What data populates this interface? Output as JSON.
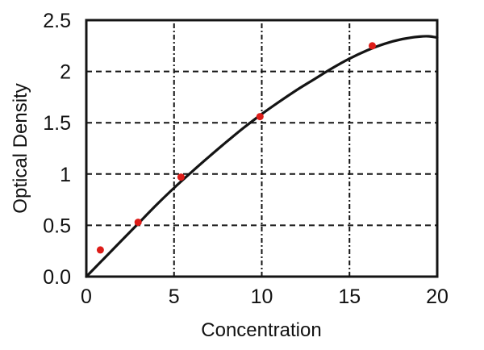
{
  "chart_data": {
    "type": "line",
    "subtype": "standard-curve with scatter points",
    "title": "",
    "xlabel": "Concentration",
    "ylabel": "Optical Density",
    "xlim": [
      0,
      20
    ],
    "ylim": [
      0,
      2.5
    ],
    "x_ticks": {
      "values": [
        0,
        5,
        10,
        15,
        20
      ],
      "labels": [
        "0",
        "5",
        "10",
        "15",
        "20"
      ]
    },
    "y_ticks": {
      "values": [
        0,
        0.5,
        1,
        1.5,
        2,
        2.5
      ],
      "labels": [
        "0.0",
        "0.5",
        "1",
        "1.5",
        "2",
        "2.5"
      ]
    },
    "grid": {
      "show": true,
      "style": "dashed",
      "interior_only": true
    },
    "legend": {
      "show": false
    },
    "series": [
      {
        "name": "fitted-curve",
        "type": "line",
        "color": "#141414",
        "points": [
          [
            0,
            0
          ],
          [
            1,
            0.175
          ],
          [
            2,
            0.35
          ],
          [
            3,
            0.525
          ],
          [
            4,
            0.7
          ],
          [
            5,
            0.865
          ],
          [
            6,
            1.02
          ],
          [
            7,
            1.17
          ],
          [
            8,
            1.315
          ],
          [
            9,
            1.455
          ],
          [
            10,
            1.585
          ],
          [
            11,
            1.705
          ],
          [
            12,
            1.82
          ],
          [
            13,
            1.925
          ],
          [
            14,
            2.03
          ],
          [
            15,
            2.125
          ],
          [
            16,
            2.205
          ],
          [
            17,
            2.27
          ],
          [
            18,
            2.315
          ],
          [
            19,
            2.34
          ],
          [
            19.5,
            2.343
          ],
          [
            20,
            2.33
          ]
        ]
      },
      {
        "name": "measured-standards",
        "type": "scatter",
        "color": "#dd1c18",
        "marker": "circle",
        "points": [
          [
            0.8,
            0.26
          ],
          [
            2.95,
            0.53
          ],
          [
            5.4,
            0.97
          ],
          [
            9.9,
            1.56
          ],
          [
            16.3,
            2.25
          ]
        ]
      }
    ]
  },
  "colors": {
    "background": "#ffffff",
    "axis": "#141414",
    "grid": "#141414",
    "curve": "#141414",
    "points": "#dd1c18",
    "text": "#111111"
  }
}
